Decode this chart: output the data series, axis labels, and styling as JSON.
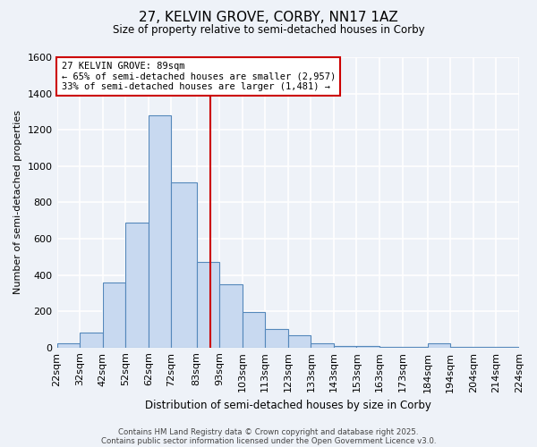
{
  "title": "27, KELVIN GROVE, CORBY, NN17 1AZ",
  "subtitle": "Size of property relative to semi-detached houses in Corby",
  "xlabel": "Distribution of semi-detached houses by size in Corby",
  "ylabel": "Number of semi-detached properties",
  "bin_labels": [
    "22sqm",
    "32sqm",
    "42sqm",
    "52sqm",
    "62sqm",
    "72sqm",
    "83sqm",
    "93sqm",
    "103sqm",
    "113sqm",
    "123sqm",
    "133sqm",
    "143sqm",
    "153sqm",
    "163sqm",
    "173sqm",
    "184sqm",
    "194sqm",
    "204sqm",
    "214sqm",
    "224sqm"
  ],
  "bin_edges": [
    22,
    32,
    42,
    52,
    62,
    72,
    83,
    93,
    103,
    113,
    123,
    133,
    143,
    153,
    163,
    173,
    184,
    194,
    204,
    214,
    224
  ],
  "bar_heights": [
    25,
    80,
    360,
    690,
    1280,
    910,
    470,
    350,
    195,
    100,
    65,
    25,
    10,
    8,
    5,
    3,
    25,
    5,
    2,
    1
  ],
  "property_value": 89,
  "bar_color": "#c8d9f0",
  "bar_edge_color": "#5588bb",
  "vline_color": "#cc0000",
  "annotation_line1": "27 KELVIN GROVE: 89sqm",
  "annotation_line2": "← 65% of semi-detached houses are smaller (2,957)",
  "annotation_line3": "33% of semi-detached houses are larger (1,481) →",
  "annotation_box_color": "#ffffff",
  "annotation_box_edge": "#cc0000",
  "ylim": [
    0,
    1600
  ],
  "yticks": [
    0,
    200,
    400,
    600,
    800,
    1000,
    1200,
    1400,
    1600
  ],
  "footer1": "Contains HM Land Registry data © Crown copyright and database right 2025.",
  "footer2": "Contains public sector information licensed under the Open Government Licence v3.0.",
  "bg_color": "#eef2f8",
  "grid_color": "#ffffff",
  "figsize": [
    6.0,
    5.0
  ],
  "dpi": 100
}
